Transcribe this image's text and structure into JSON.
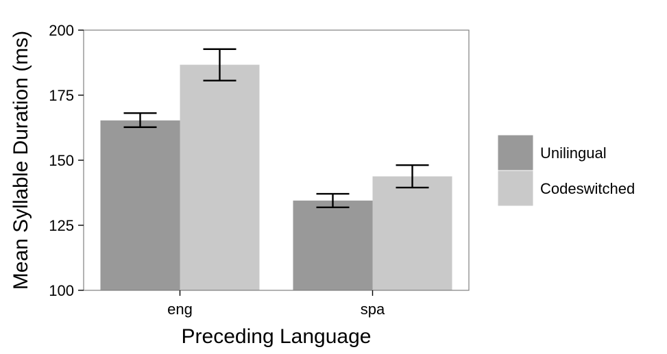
{
  "chart_data": {
    "type": "bar",
    "xlabel": "Preceding Language",
    "ylabel": "Mean Syllable Duration (ms)",
    "categories": [
      "eng",
      "spa"
    ],
    "ylim": [
      100,
      200
    ],
    "yticks": [
      100,
      125,
      150,
      175,
      200
    ],
    "grid": false,
    "legend_position": "right",
    "series": [
      {
        "name": "Unilingual",
        "color": "#999999",
        "values": [
          165.3,
          134.5
        ],
        "error_low": [
          162.7,
          131.9
        ],
        "error_high": [
          168.1,
          137.1
        ]
      },
      {
        "name": "Codeswitched",
        "color": "#c9c9c9",
        "values": [
          186.7,
          143.8
        ],
        "error_low": [
          180.6,
          139.5
        ],
        "error_high": [
          192.7,
          148.1
        ]
      }
    ]
  }
}
